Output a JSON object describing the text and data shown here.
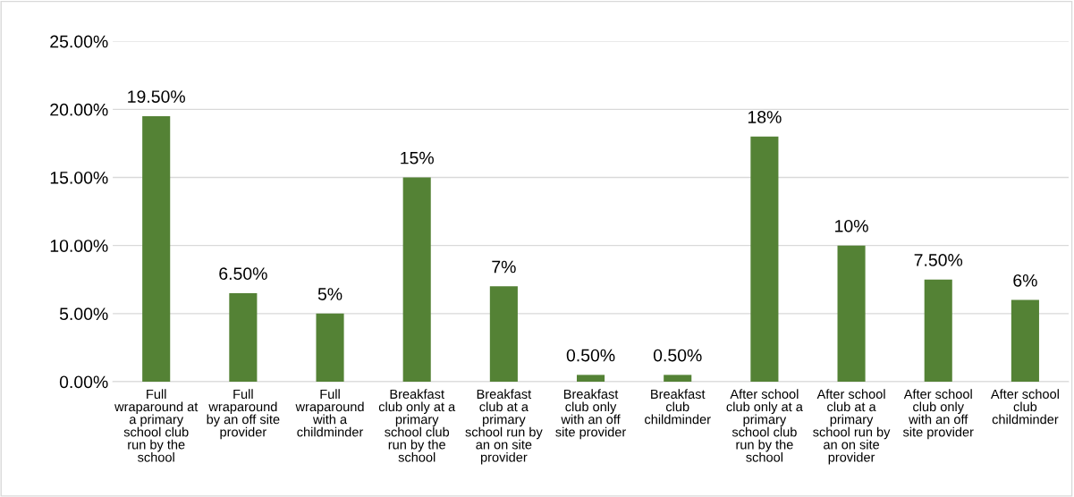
{
  "chart_data": {
    "type": "bar",
    "categories": [
      "Full\nwraparound at\na primary\nschool club\nrun by the\nschool",
      "Full\nwraparound\nby an off site\nprovider",
      "Full\nwraparound\nwith a\nchildminder",
      "Breakfast\nclub only at a\nprimary\nschool club\nrun by the\nschool",
      "Breakfast\nclub at a\nprimary\nschool run by\nan on site\nprovider",
      "Breakfast\nclub only\nwith an off\nsite provider",
      "Breakfast\nclub\nchildminder",
      "After school\nclub only at a\nprimary\nschool club\nrun by the\nschool",
      "After school\nclub at a\nprimary\nschool run by\nan on site\nprovider",
      "After school\nclub only\nwith an off\nsite provider",
      "After school\nclub\nchildminder"
    ],
    "values": [
      19.5,
      6.5,
      5,
      15,
      7,
      0.5,
      0.5,
      18,
      10,
      7.5,
      6
    ],
    "value_labels": [
      "19.50%",
      "6.50%",
      "5%",
      "15%",
      "7%",
      "0.50%",
      "0.50%",
      "18%",
      "10%",
      "7.50%",
      "6%"
    ],
    "color": "#548235",
    "ylim": [
      0,
      25
    ],
    "yticks": [
      {
        "value": 0,
        "label": "0.00%"
      },
      {
        "value": 5,
        "label": "5.00%"
      },
      {
        "value": 10,
        "label": "10.00%"
      },
      {
        "value": 15,
        "label": "15.00%"
      },
      {
        "value": 20,
        "label": "20.00%"
      },
      {
        "value": 25,
        "label": "25.00%"
      }
    ],
    "grid": "y"
  }
}
